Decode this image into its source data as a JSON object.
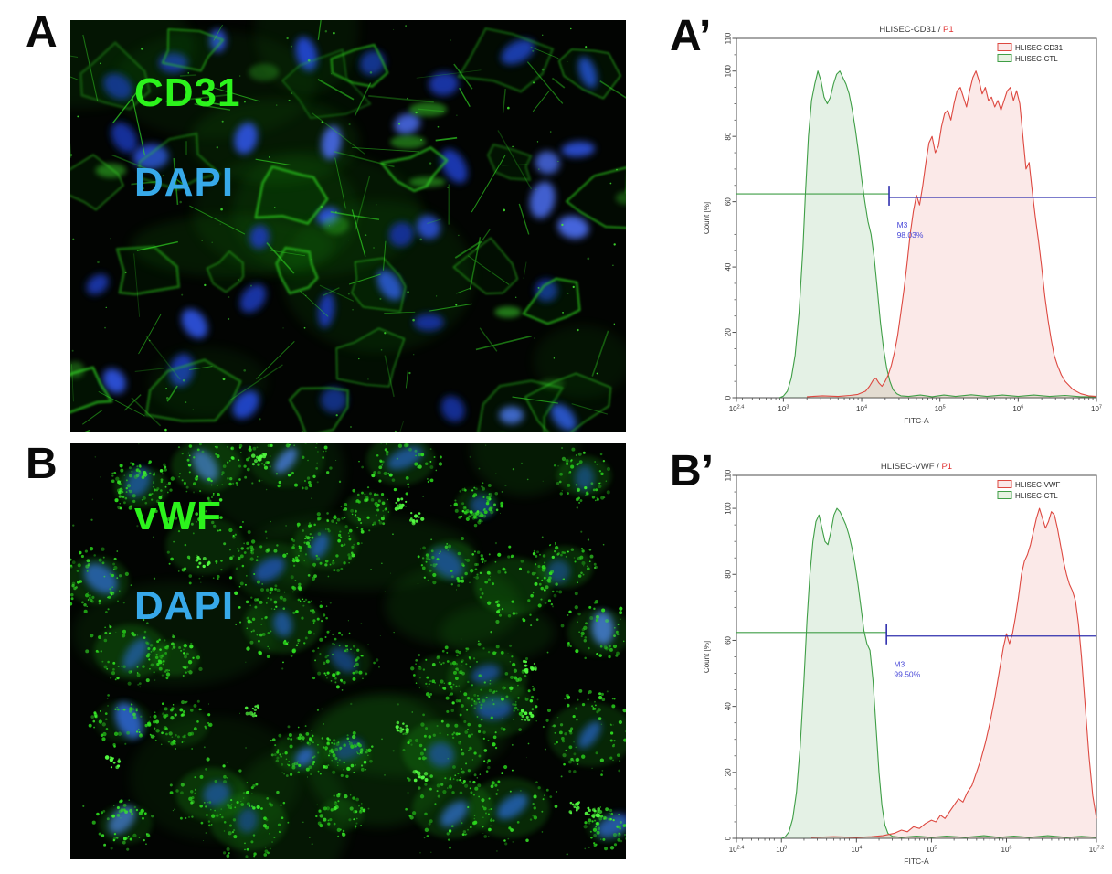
{
  "figure": {
    "panels": {
      "a": {
        "label": "A",
        "stain_lines": [
          {
            "text": "CD31",
            "color": "#2cf31c"
          },
          {
            "text": "DAPI",
            "color": "#37a9e9"
          }
        ]
      },
      "a_prime": {
        "label": "A’"
      },
      "b": {
        "label": "B",
        "stain_lines": [
          {
            "text": "vWF",
            "color": "#2cf31c"
          },
          {
            "text": "DAPI",
            "color": "#37a9e9"
          }
        ]
      },
      "b_prime": {
        "label": "B’"
      }
    }
  },
  "chart_data": [
    {
      "name": "flow-cd31",
      "type": "area",
      "subtype": "flow-cytometry-histogram",
      "title": "HLISEC-CD31 / P1",
      "title_main": "HLISEC-CD31 / ",
      "title_gate": "P1",
      "title_gate_color": "#e03030",
      "xlabel": "FITC-A",
      "ylabel": "Count  [%]",
      "x_scale": "log10",
      "xlim_log10": [
        2.4,
        7.0
      ],
      "ylim": [
        0,
        110
      ],
      "x_tick_exponents": [
        2.4,
        3,
        4,
        5,
        6,
        7
      ],
      "x_tick_labels": [
        "10^2.4",
        "10^3",
        "10^4",
        "10^5",
        "10^6",
        "10^7"
      ],
      "y_ticks": [
        0,
        20,
        40,
        60,
        80,
        100,
        110
      ],
      "grid": false,
      "legend_position": "top-right",
      "legend": [
        {
          "label": "HLISEC-CD31",
          "stroke": "#dd4840",
          "fill": "#fae8e8"
        },
        {
          "label": "HLISEC-CTL",
          "stroke": "#3f9e46",
          "fill": "#e7f2e2"
        }
      ],
      "marker": {
        "label": "M3",
        "percent": "98.03%",
        "text_color": "#4848d8",
        "label_pos_log10": 4.45,
        "label_pos_y": 52,
        "green_line": {
          "y": 62.4,
          "from_log10": 2.4,
          "to_log10": 4.35,
          "color": "#3f9e46"
        },
        "blue_line": {
          "y": 61.3,
          "from_log10": 4.35,
          "to_log10": 7.0,
          "color": "#2f2fae"
        }
      },
      "series": [
        {
          "name": "HLISEC-CTL",
          "stroke": "#3f9e46",
          "fill": "#3f9e46",
          "fill_opacity": 0.14,
          "points_log10x_y": [
            [
              2.95,
              0
            ],
            [
              3.0,
              0.5
            ],
            [
              3.05,
              2
            ],
            [
              3.1,
              6
            ],
            [
              3.15,
              13
            ],
            [
              3.2,
              26
            ],
            [
              3.25,
              46
            ],
            [
              3.28,
              62
            ],
            [
              3.32,
              80
            ],
            [
              3.36,
              91
            ],
            [
              3.4,
              96
            ],
            [
              3.44,
              100
            ],
            [
              3.48,
              97
            ],
            [
              3.52,
              92
            ],
            [
              3.56,
              90
            ],
            [
              3.6,
              92
            ],
            [
              3.64,
              96
            ],
            [
              3.68,
              99
            ],
            [
              3.72,
              100
            ],
            [
              3.76,
              98
            ],
            [
              3.8,
              96
            ],
            [
              3.84,
              93
            ],
            [
              3.88,
              88
            ],
            [
              3.92,
              82
            ],
            [
              3.96,
              75
            ],
            [
              4.0,
              67
            ],
            [
              4.04,
              60
            ],
            [
              4.08,
              54
            ],
            [
              4.12,
              50
            ],
            [
              4.16,
              43
            ],
            [
              4.2,
              33
            ],
            [
              4.24,
              23
            ],
            [
              4.28,
              15
            ],
            [
              4.32,
              9
            ],
            [
              4.36,
              5
            ],
            [
              4.4,
              2.5
            ],
            [
              4.45,
              1.2
            ],
            [
              4.5,
              0.6
            ],
            [
              4.6,
              0.4
            ],
            [
              4.75,
              0.8
            ],
            [
              4.9,
              0.3
            ],
            [
              5.05,
              0.8
            ],
            [
              5.2,
              0.4
            ],
            [
              5.4,
              0.9
            ],
            [
              5.6,
              0.4
            ],
            [
              5.8,
              0.8
            ],
            [
              6.0,
              0.4
            ],
            [
              6.2,
              0.8
            ],
            [
              6.4,
              0.4
            ],
            [
              6.6,
              0.7
            ],
            [
              6.8,
              0.3
            ],
            [
              7.0,
              0.3
            ]
          ]
        },
        {
          "name": "HLISEC-CD31",
          "stroke": "#dd4840",
          "fill": "#dd4840",
          "fill_opacity": 0.12,
          "points_log10x_y": [
            [
              3.3,
              0.3
            ],
            [
              3.5,
              0.6
            ],
            [
              3.7,
              0.4
            ],
            [
              3.85,
              0.7
            ],
            [
              3.95,
              1
            ],
            [
              4.05,
              2
            ],
            [
              4.1,
              3.5
            ],
            [
              4.15,
              5.5
            ],
            [
              4.18,
              6
            ],
            [
              4.22,
              4.5
            ],
            [
              4.26,
              3.5
            ],
            [
              4.3,
              5
            ],
            [
              4.34,
              7
            ],
            [
              4.38,
              10
            ],
            [
              4.42,
              14
            ],
            [
              4.46,
              19
            ],
            [
              4.5,
              26
            ],
            [
              4.54,
              33
            ],
            [
              4.58,
              41
            ],
            [
              4.62,
              50
            ],
            [
              4.66,
              57
            ],
            [
              4.7,
              62
            ],
            [
              4.74,
              59
            ],
            [
              4.78,
              65
            ],
            [
              4.82,
              72
            ],
            [
              4.86,
              78
            ],
            [
              4.9,
              80
            ],
            [
              4.94,
              75
            ],
            [
              4.98,
              77
            ],
            [
              5.02,
              83
            ],
            [
              5.06,
              87
            ],
            [
              5.1,
              88
            ],
            [
              5.14,
              85
            ],
            [
              5.18,
              90
            ],
            [
              5.22,
              94
            ],
            [
              5.26,
              95
            ],
            [
              5.3,
              92
            ],
            [
              5.34,
              89
            ],
            [
              5.38,
              94
            ],
            [
              5.42,
              98
            ],
            [
              5.46,
              100
            ],
            [
              5.5,
              97
            ],
            [
              5.54,
              93
            ],
            [
              5.58,
              95
            ],
            [
              5.62,
              91
            ],
            [
              5.66,
              92
            ],
            [
              5.7,
              89
            ],
            [
              5.74,
              91
            ],
            [
              5.78,
              88
            ],
            [
              5.82,
              91
            ],
            [
              5.86,
              94
            ],
            [
              5.9,
              95
            ],
            [
              5.94,
              91
            ],
            [
              5.98,
              94
            ],
            [
              6.02,
              90
            ],
            [
              6.06,
              80
            ],
            [
              6.1,
              70
            ],
            [
              6.14,
              72
            ],
            [
              6.18,
              63
            ],
            [
              6.22,
              55
            ],
            [
              6.26,
              48
            ],
            [
              6.3,
              40
            ],
            [
              6.34,
              31
            ],
            [
              6.38,
              24
            ],
            [
              6.42,
              18
            ],
            [
              6.46,
              13
            ],
            [
              6.5,
              10
            ],
            [
              6.55,
              7
            ],
            [
              6.6,
              5
            ],
            [
              6.7,
              2.5
            ],
            [
              6.8,
              1.2
            ],
            [
              6.9,
              0.6
            ],
            [
              7.0,
              0.4
            ]
          ]
        }
      ]
    },
    {
      "name": "flow-vwf",
      "type": "area",
      "subtype": "flow-cytometry-histogram",
      "title": "HLISEC-VWF / P1",
      "title_main": "HLISEC-VWF / ",
      "title_gate": "P1",
      "title_gate_color": "#e03030",
      "xlabel": "FITC-A",
      "ylabel": "Count  [%]",
      "x_scale": "log10",
      "xlim_log10": [
        2.4,
        7.2
      ],
      "ylim": [
        0,
        110
      ],
      "x_tick_exponents": [
        2.4,
        3,
        4,
        5,
        6,
        7.2
      ],
      "x_tick_labels": [
        "10^2.4",
        "10^3",
        "10^4",
        "10^5",
        "10^6",
        "10^7.2"
      ],
      "y_ticks": [
        0,
        20,
        40,
        60,
        80,
        100,
        110
      ],
      "grid": false,
      "legend_position": "top-right",
      "legend": [
        {
          "label": "HLISEC-VWF",
          "stroke": "#dd4840",
          "fill": "#fae8e8"
        },
        {
          "label": "HLISEC-CTL",
          "stroke": "#3f9e46",
          "fill": "#e7f2e2"
        }
      ],
      "marker": {
        "label": "M3",
        "percent": "99.50%",
        "text_color": "#4848d8",
        "label_pos_log10": 4.5,
        "label_pos_y": 52,
        "green_line": {
          "y": 62.4,
          "from_log10": 2.4,
          "to_log10": 4.4,
          "color": "#3f9e46"
        },
        "blue_line": {
          "y": 61.3,
          "from_log10": 4.4,
          "to_log10": 7.2,
          "color": "#2f2fae"
        }
      },
      "series": [
        {
          "name": "HLISEC-CTL",
          "stroke": "#3f9e46",
          "fill": "#3f9e46",
          "fill_opacity": 0.14,
          "points_log10x_y": [
            [
              3.0,
              0
            ],
            [
              3.05,
              0.5
            ],
            [
              3.1,
              2
            ],
            [
              3.15,
              6
            ],
            [
              3.2,
              14
            ],
            [
              3.25,
              28
            ],
            [
              3.3,
              48
            ],
            [
              3.34,
              66
            ],
            [
              3.38,
              80
            ],
            [
              3.42,
              90
            ],
            [
              3.46,
              96
            ],
            [
              3.5,
              98
            ],
            [
              3.54,
              94
            ],
            [
              3.58,
              90
            ],
            [
              3.62,
              89
            ],
            [
              3.66,
              93
            ],
            [
              3.7,
              98
            ],
            [
              3.74,
              100
            ],
            [
              3.78,
              99
            ],
            [
              3.82,
              97
            ],
            [
              3.86,
              95
            ],
            [
              3.9,
              92
            ],
            [
              3.94,
              88
            ],
            [
              3.98,
              83
            ],
            [
              4.02,
              77
            ],
            [
              4.06,
              70
            ],
            [
              4.1,
              63
            ],
            [
              4.14,
              59
            ],
            [
              4.18,
              57
            ],
            [
              4.22,
              48
            ],
            [
              4.26,
              34
            ],
            [
              4.3,
              20
            ],
            [
              4.34,
              10
            ],
            [
              4.38,
              4
            ],
            [
              4.42,
              1.5
            ],
            [
              4.48,
              0.6
            ],
            [
              4.6,
              0.3
            ],
            [
              4.8,
              0.7
            ],
            [
              5.0,
              0.3
            ],
            [
              5.2,
              0.7
            ],
            [
              5.45,
              0.3
            ],
            [
              5.7,
              0.8
            ],
            [
              5.9,
              0.3
            ],
            [
              6.1,
              0.7
            ],
            [
              6.3,
              0.3
            ],
            [
              6.55,
              0.8
            ],
            [
              6.8,
              0.3
            ],
            [
              7.0,
              0.6
            ],
            [
              7.2,
              0.3
            ]
          ]
        },
        {
          "name": "HLISEC-VWF",
          "stroke": "#dd4840",
          "fill": "#dd4840",
          "fill_opacity": 0.12,
          "points_log10x_y": [
            [
              3.4,
              0.3
            ],
            [
              3.7,
              0.5
            ],
            [
              4.0,
              0.3
            ],
            [
              4.2,
              0.5
            ],
            [
              4.35,
              0.8
            ],
            [
              4.5,
              1.5
            ],
            [
              4.6,
              2.5
            ],
            [
              4.68,
              2
            ],
            [
              4.76,
              3.5
            ],
            [
              4.84,
              3
            ],
            [
              4.92,
              4.5
            ],
            [
              5.0,
              5.5
            ],
            [
              5.06,
              5
            ],
            [
              5.12,
              7
            ],
            [
              5.18,
              6
            ],
            [
              5.24,
              8
            ],
            [
              5.3,
              10
            ],
            [
              5.36,
              12
            ],
            [
              5.42,
              11
            ],
            [
              5.48,
              14
            ],
            [
              5.54,
              16
            ],
            [
              5.6,
              20
            ],
            [
              5.66,
              24
            ],
            [
              5.72,
              29
            ],
            [
              5.78,
              35
            ],
            [
              5.84,
              42
            ],
            [
              5.9,
              50
            ],
            [
              5.96,
              58
            ],
            [
              6.0,
              62
            ],
            [
              6.04,
              59
            ],
            [
              6.08,
              62
            ],
            [
              6.12,
              67
            ],
            [
              6.16,
              73
            ],
            [
              6.2,
              80
            ],
            [
              6.24,
              84
            ],
            [
              6.28,
              86
            ],
            [
              6.32,
              89
            ],
            [
              6.36,
              93
            ],
            [
              6.4,
              97
            ],
            [
              6.44,
              100
            ],
            [
              6.48,
              97
            ],
            [
              6.52,
              94
            ],
            [
              6.56,
              96
            ],
            [
              6.6,
              99
            ],
            [
              6.64,
              98
            ],
            [
              6.68,
              94
            ],
            [
              6.72,
              89
            ],
            [
              6.76,
              84
            ],
            [
              6.8,
              80
            ],
            [
              6.84,
              77
            ],
            [
              6.88,
              75
            ],
            [
              6.92,
              72
            ],
            [
              6.96,
              65
            ],
            [
              7.0,
              55
            ],
            [
              7.05,
              40
            ],
            [
              7.1,
              25
            ],
            [
              7.15,
              13
            ],
            [
              7.2,
              6
            ]
          ]
        }
      ]
    }
  ]
}
